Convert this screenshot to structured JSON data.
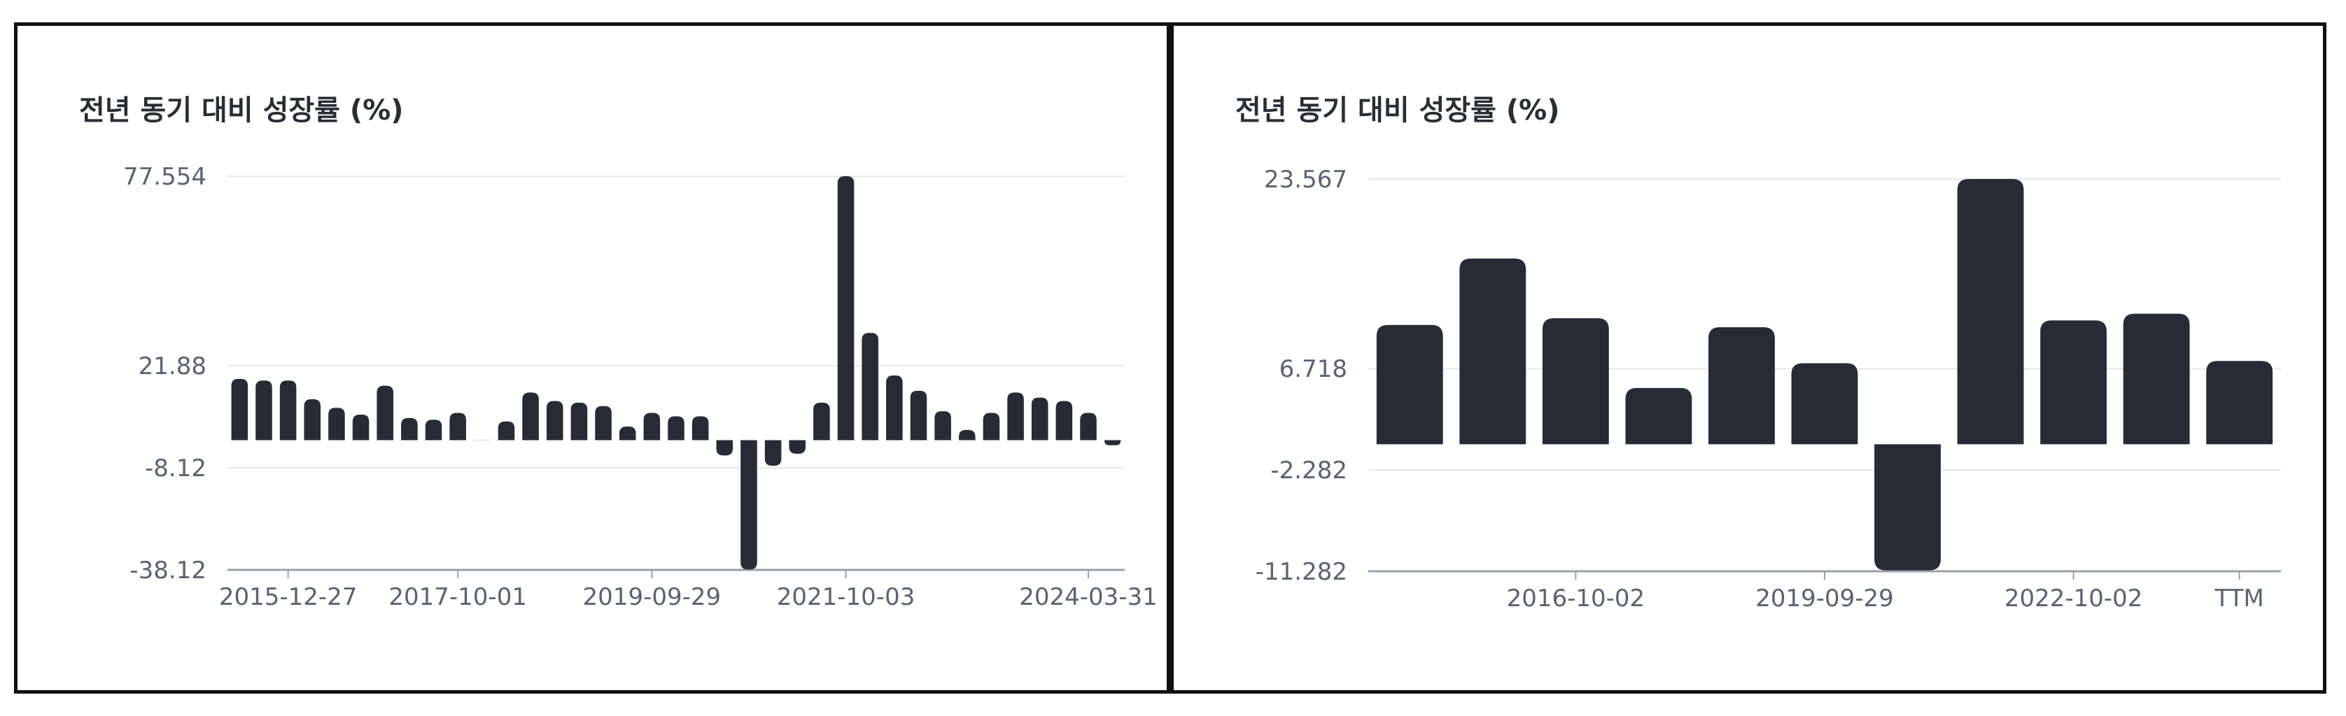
{
  "colors": {
    "bar": "#262b35",
    "grid": "#e6e7ea",
    "axis": "#9aa0aa",
    "text": "#5b6270"
  },
  "chart_data": [
    {
      "type": "bar",
      "title": "전년 동기 대비 성장률 (%)",
      "xlabel": "",
      "ylabel": "",
      "grid": true,
      "y_ticks": [
        77.554,
        21.88,
        -8.12,
        -38.12
      ],
      "y_tick_labels": [
        "77.554",
        "21.88",
        "-8.12",
        "-38.12"
      ],
      "ylim": [
        -38.12,
        77.554
      ],
      "x_tick_labels": [
        {
          "label": "2015-12-27",
          "index": 2
        },
        {
          "label": "2017-10-01",
          "index": 9
        },
        {
          "label": "2019-09-29",
          "index": 17
        },
        {
          "label": "2021-10-03",
          "index": 25
        },
        {
          "label": "2024-03-31",
          "index": 35
        }
      ],
      "values": [
        18,
        17.5,
        17.5,
        12,
        9.5,
        7.5,
        16,
        6.5,
        6,
        8,
        0,
        5.5,
        14,
        11.5,
        11,
        10,
        4,
        8,
        7,
        7,
        -4.5,
        -38,
        -7.5,
        -4,
        11,
        77.554,
        31.5,
        19,
        14.5,
        8.5,
        3,
        8,
        14,
        12.5,
        11.5,
        8,
        -1.5
      ]
    },
    {
      "type": "bar",
      "title": "전년 동기 대비 성장률 (%)",
      "xlabel": "",
      "ylabel": "",
      "grid": true,
      "y_ticks": [
        23.567,
        6.718,
        -2.282,
        -11.282
      ],
      "y_tick_labels": [
        "23.567",
        "6.718",
        "-2.282",
        "-11.282"
      ],
      "ylim": [
        -11.282,
        23.567
      ],
      "x_tick_labels": [
        {
          "label": "2016-10-02",
          "index": 2
        },
        {
          "label": "2019-09-29",
          "index": 5
        },
        {
          "label": "2022-10-02",
          "index": 8
        },
        {
          "label": "TTM",
          "index": 10
        }
      ],
      "values": [
        10.6,
        16.5,
        11.2,
        5,
        10.4,
        7.2,
        -11.2,
        23.567,
        11,
        11.6,
        7.4
      ]
    }
  ]
}
